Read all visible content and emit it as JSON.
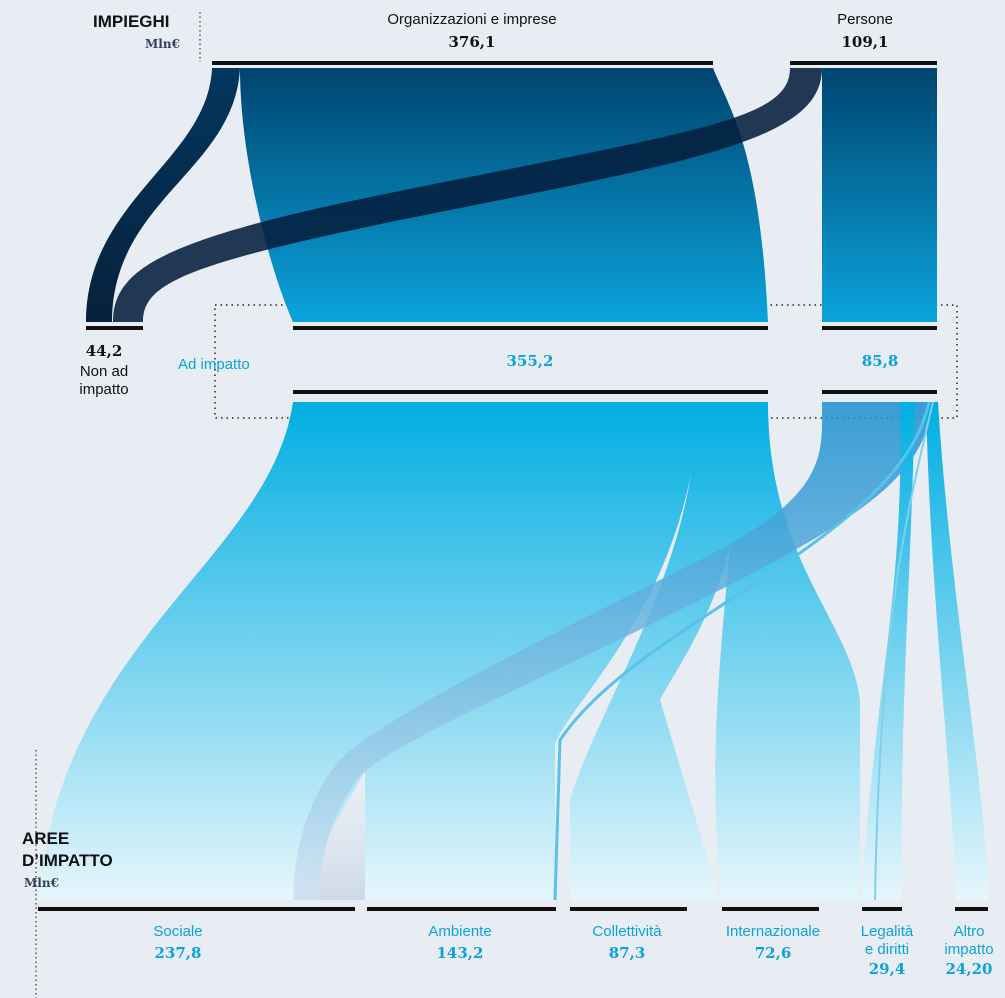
{
  "header": {
    "title": "IMPIEGHI",
    "unit": "Mln€"
  },
  "impact_header": {
    "title_line1": "AREE",
    "title_line2": "D’IMPATTO",
    "unit": "Mln€"
  },
  "middle": {
    "ad_impatto_label": "Ad impatto"
  },
  "colors": {
    "dark_navy": "#0a2a4c",
    "blue": "#034c80",
    "cyan": "#00aee0",
    "light": "#e2f4fc",
    "bar": "#111111",
    "accent_text": "#0aa3dd"
  },
  "chart_data": {
    "type": "sankey",
    "sources": [
      {
        "name": "Organizzazioni e imprese",
        "value": "376,1"
      },
      {
        "name": "Persone",
        "value": "109,1"
      }
    ],
    "middle_nodes": [
      {
        "name": "Non ad impatto",
        "value": "44,2"
      },
      {
        "name": "Ad impatto (Organizzazioni e imprese)",
        "value": "355,2"
      },
      {
        "name": "Ad impatto (Persone)",
        "value": "85,8"
      }
    ],
    "targets": [
      {
        "name": "Sociale",
        "value": "237,8"
      },
      {
        "name": "Ambiente",
        "value": "143,2"
      },
      {
        "name": "Collettività",
        "value": "87,3"
      },
      {
        "name": "Internazionale",
        "value": "72,6"
      },
      {
        "name": "Legalità e diritti",
        "value": "29,4"
      },
      {
        "name": "Altro impatto",
        "value": "24,20"
      }
    ],
    "labels": {
      "org_name": "Organizzazioni e imprese",
      "org_value": "376,1",
      "per_name": "Persone",
      "per_value": "109,1",
      "non_value": "44,2",
      "non_line1": "Non ad",
      "non_line2": "impatto",
      "mid_org_value": "355,2",
      "mid_per_value": "85,8",
      "t_sociale": "Sociale",
      "v_sociale": "237,8",
      "t_ambiente": "Ambiente",
      "v_ambiente": "143,2",
      "t_collettivita": "Collettività",
      "v_collettivita": "87,3",
      "t_internazionale": "Internazionale",
      "v_internazionale": "72,6",
      "t_legalita_1": "Legalità",
      "t_legalita_2": "e diritti",
      "v_legalita": "29,4",
      "t_altro_1": "Altro",
      "t_altro_2": "impatto",
      "v_altro": "24,20"
    }
  }
}
